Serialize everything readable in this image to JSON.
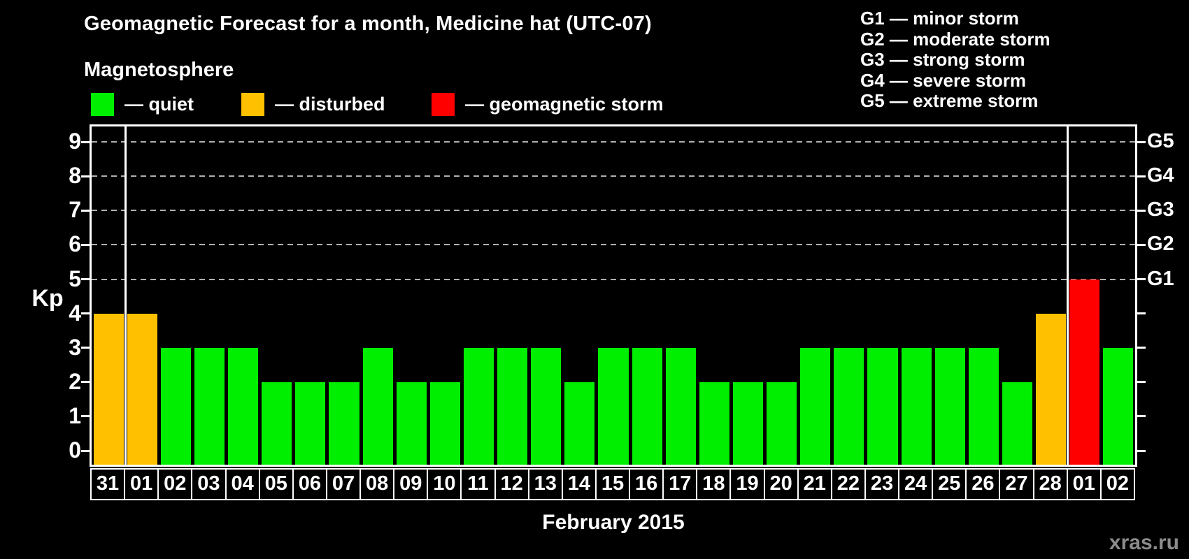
{
  "title": "Geomagnetic Forecast for a month, Medicine hat (UTC-07)",
  "subtitle": "Magnetosphere",
  "legend": {
    "items": [
      {
        "id": "quiet",
        "label": "— quiet",
        "color": "#00ee00"
      },
      {
        "id": "disturbed",
        "label": "— disturbed",
        "color": "#ffc000"
      },
      {
        "id": "storm",
        "label": "— geomagnetic storm",
        "color": "#ff0000"
      }
    ]
  },
  "storm_scale_legend": [
    "G1 — minor storm",
    "G2 — moderate storm",
    "G3 — strong storm",
    "G4 — severe storm",
    "G5 — extreme storm"
  ],
  "chart_data": {
    "type": "bar",
    "title": "Geomagnetic Forecast for a month, Medicine hat (UTC-07)",
    "categories": [
      "31",
      "01",
      "02",
      "03",
      "04",
      "05",
      "06",
      "07",
      "08",
      "09",
      "10",
      "11",
      "12",
      "13",
      "14",
      "15",
      "16",
      "17",
      "18",
      "19",
      "20",
      "21",
      "22",
      "23",
      "24",
      "25",
      "26",
      "27",
      "28",
      "01",
      "02"
    ],
    "values": [
      4,
      4,
      3,
      3,
      3,
      2,
      2,
      2,
      3,
      2,
      2,
      3,
      3,
      3,
      2,
      3,
      3,
      3,
      2,
      2,
      2,
      3,
      3,
      3,
      3,
      3,
      3,
      2,
      4,
      5,
      3
    ],
    "bar_status": [
      "disturbed",
      "disturbed",
      "quiet",
      "quiet",
      "quiet",
      "quiet",
      "quiet",
      "quiet",
      "quiet",
      "quiet",
      "quiet",
      "quiet",
      "quiet",
      "quiet",
      "quiet",
      "quiet",
      "quiet",
      "quiet",
      "quiet",
      "quiet",
      "quiet",
      "quiet",
      "quiet",
      "quiet",
      "quiet",
      "quiet",
      "quiet",
      "quiet",
      "disturbed",
      "storm",
      "quiet"
    ],
    "status_colors": {
      "quiet": "#00ee00",
      "disturbed": "#ffc000",
      "storm": "#ff0000"
    },
    "ylabel": "Kp",
    "xlabel": "February 2015",
    "ylim": [
      -0.4,
      9.5
    ],
    "yticks": [
      0,
      1,
      2,
      3,
      4,
      5,
      6,
      7,
      8,
      9
    ],
    "gridlines_at_kp": [
      5,
      6,
      7,
      8,
      9
    ],
    "grid": "dashed horizontal lines at Kp 5-9",
    "right_axis": {
      "labels": [
        "G1",
        "G2",
        "G3",
        "G4",
        "G5"
      ],
      "at_kp": [
        5,
        6,
        7,
        8,
        9
      ]
    },
    "month_separators_after_index": [
      0,
      28
    ],
    "legend_position": "top-left",
    "axis_color": "#ffffff",
    "gridline_color": "#b0b0b0",
    "background_color": "#000000"
  },
  "footer": {
    "watermark": "xras.ru"
  }
}
